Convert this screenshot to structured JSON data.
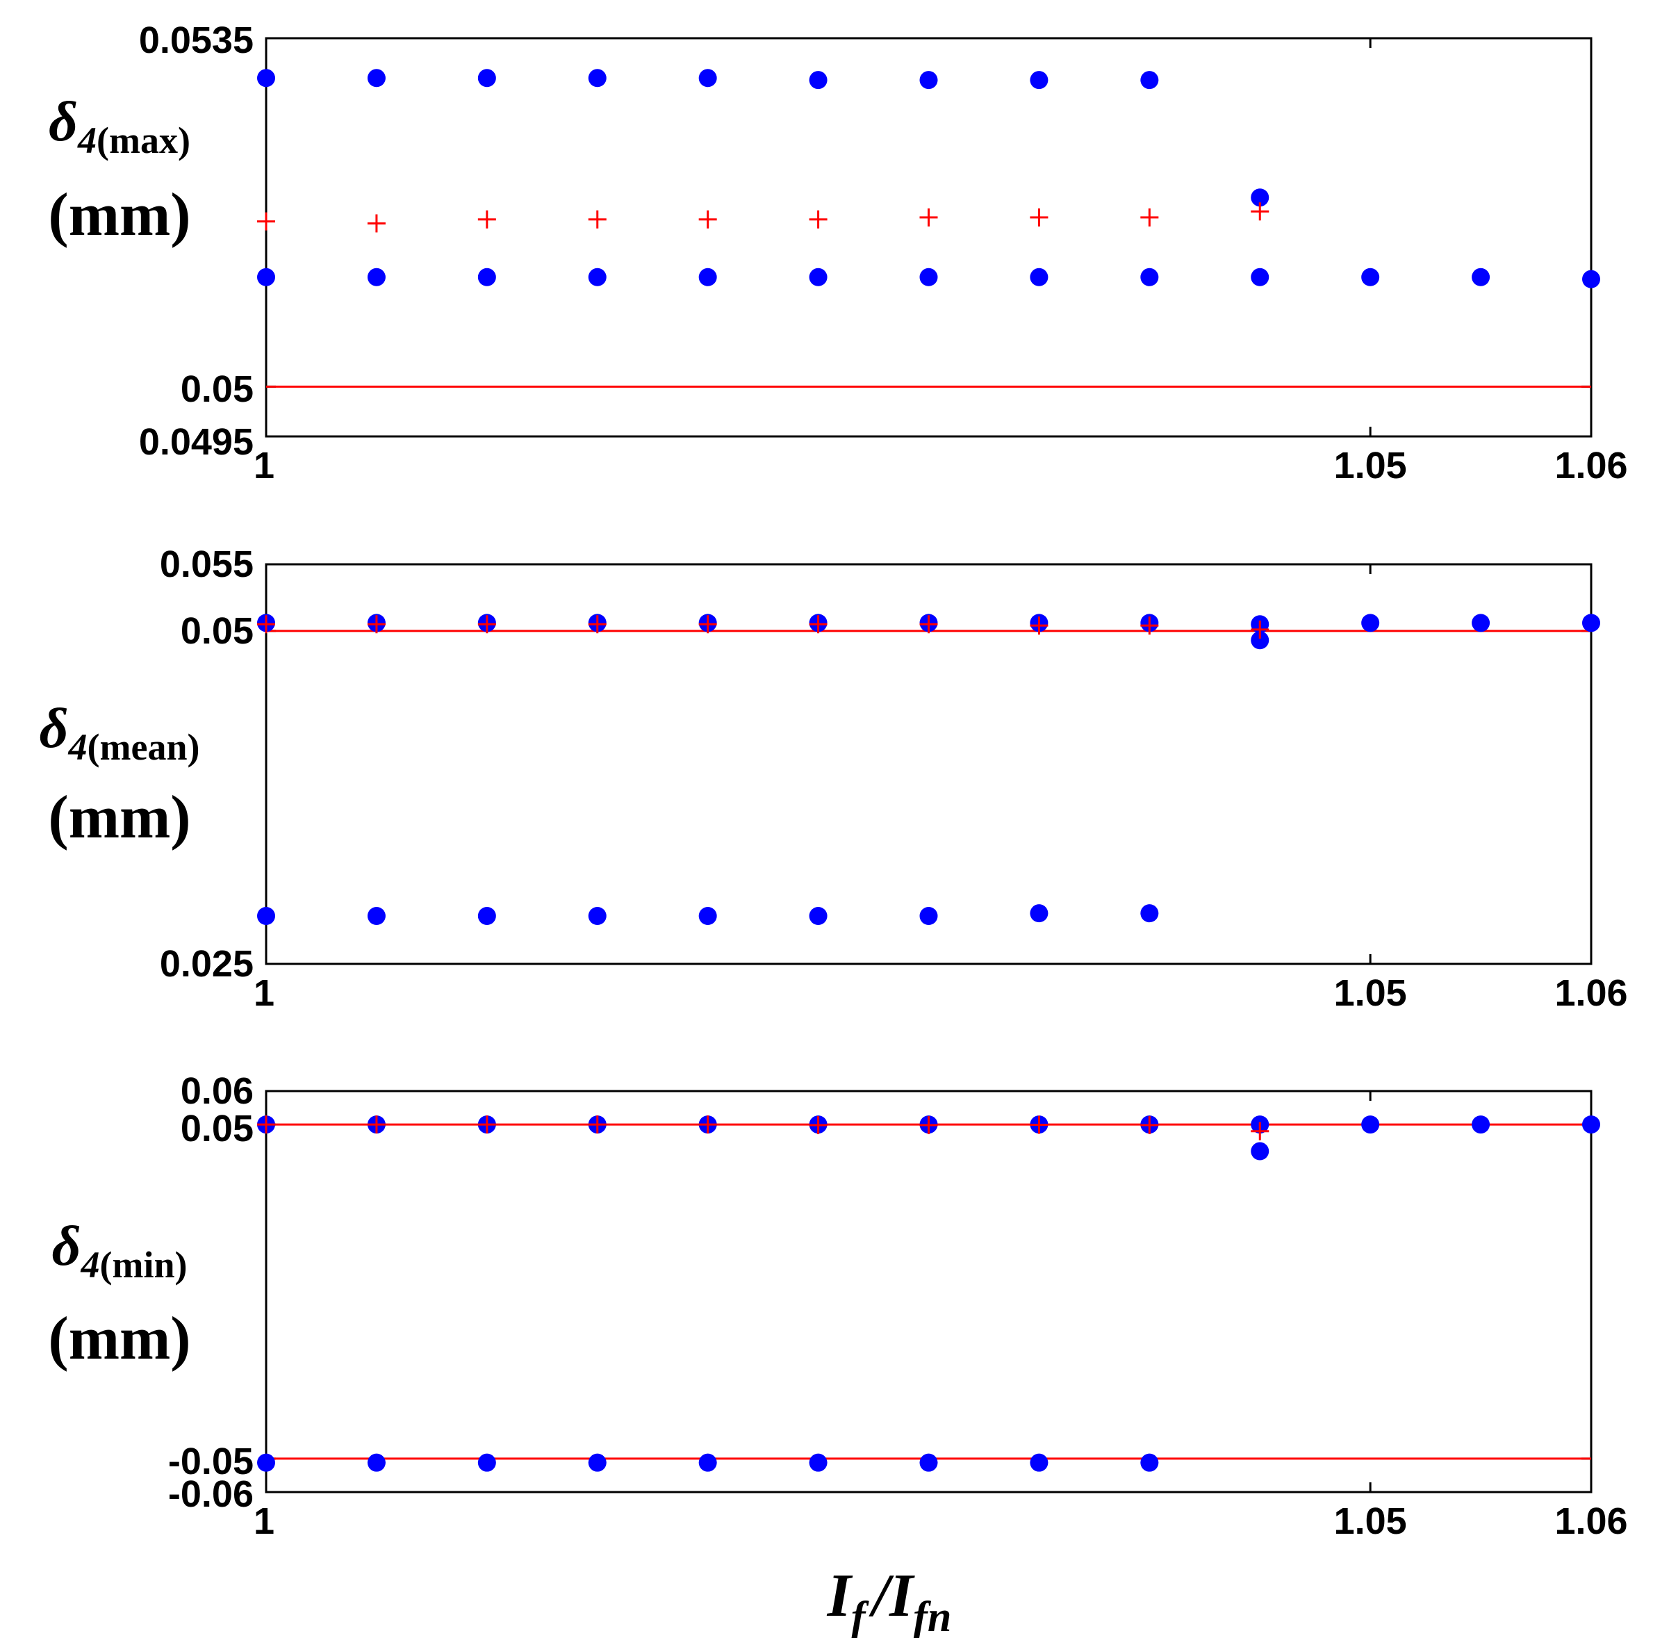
{
  "chart_data": [
    {
      "type": "scatter",
      "ylabel": {
        "symbol": "δ",
        "subscript_index": "4",
        "subscript_text": "(max)",
        "unit": "(mm)"
      },
      "ylim": [
        0.0495,
        0.0535
      ],
      "xlim": [
        1,
        1.06
      ],
      "yticks": [
        0.0495,
        0.05,
        0.0535
      ],
      "ytick_labels": [
        "0.0495",
        "0.05",
        "0.0535"
      ],
      "xticks": [
        1,
        1.05,
        1.06
      ],
      "xtick_labels": [
        "1",
        "1.05",
        "1.06"
      ],
      "reference_lines": [
        0.05
      ],
      "series": [
        {
          "marker": "circle",
          "color": "#0000ff",
          "x": [
            1,
            1.005,
            1.01,
            1.015,
            1.02,
            1.025,
            1.03,
            1.035,
            1.04
          ],
          "y": [
            0.0531,
            0.0531,
            0.0531,
            0.0531,
            0.0531,
            0.05308,
            0.05308,
            0.05308,
            0.05308
          ]
        },
        {
          "marker": "circle",
          "color": "#0000ff",
          "x": [
            1,
            1.005,
            1.01,
            1.015,
            1.02,
            1.025,
            1.03,
            1.035,
            1.04,
            1.045,
            1.05,
            1.055,
            1.06
          ],
          "y": [
            0.0511,
            0.0511,
            0.0511,
            0.0511,
            0.0511,
            0.0511,
            0.0511,
            0.0511,
            0.0511,
            0.0511,
            0.0511,
            0.0511,
            0.05108
          ]
        },
        {
          "marker": "circle",
          "color": "#0000ff",
          "x": [
            1.045
          ],
          "y": [
            0.0519
          ]
        },
        {
          "marker": "plus",
          "color": "#ff0000",
          "x": [
            1,
            1.005,
            1.01,
            1.015,
            1.02,
            1.025,
            1.03,
            1.035,
            1.04,
            1.045
          ],
          "y": [
            0.05166,
            0.05164,
            0.05168,
            0.05168,
            0.05168,
            0.05168,
            0.0517,
            0.0517,
            0.0517,
            0.05176
          ]
        }
      ]
    },
    {
      "type": "scatter",
      "ylabel": {
        "symbol": "δ",
        "subscript_index": "4",
        "subscript_text": "(mean)",
        "unit": "(mm)"
      },
      "ylim": [
        0.025,
        0.055
      ],
      "xlim": [
        1,
        1.06
      ],
      "yticks": [
        0.025,
        0.05,
        0.055
      ],
      "ytick_labels": [
        "0.025",
        "0.05",
        "0.055"
      ],
      "xticks": [
        1,
        1.05,
        1.06
      ],
      "xtick_labels": [
        "1",
        "1.05",
        "1.06"
      ],
      "reference_lines": [
        0.05
      ],
      "series": [
        {
          "marker": "circle",
          "color": "#0000ff",
          "x": [
            1,
            1.005,
            1.01,
            1.015,
            1.02,
            1.025,
            1.03,
            1.035,
            1.04,
            1.045,
            1.05,
            1.055,
            1.06
          ],
          "y": [
            0.0506,
            0.0506,
            0.0506,
            0.0506,
            0.0506,
            0.0506,
            0.0506,
            0.0506,
            0.0506,
            0.0505,
            0.0506,
            0.0506,
            0.0506
          ]
        },
        {
          "marker": "circle",
          "color": "#0000ff",
          "x": [
            1,
            1.005,
            1.01,
            1.015,
            1.02,
            1.025,
            1.03,
            1.035,
            1.04
          ],
          "y": [
            0.0286,
            0.0286,
            0.0286,
            0.0286,
            0.0286,
            0.0286,
            0.0286,
            0.0288,
            0.0288
          ]
        },
        {
          "marker": "circle",
          "color": "#0000ff",
          "x": [
            1.045
          ],
          "y": [
            0.0493
          ]
        },
        {
          "marker": "plus",
          "color": "#ff0000",
          "x": [
            1,
            1.005,
            1.01,
            1.015,
            1.02,
            1.025,
            1.03,
            1.035,
            1.04,
            1.045
          ],
          "y": [
            0.0505,
            0.0505,
            0.0505,
            0.0505,
            0.0505,
            0.0505,
            0.0505,
            0.0504,
            0.0504,
            0.0501
          ]
        }
      ]
    },
    {
      "type": "scatter",
      "ylabel": {
        "symbol": "δ",
        "subscript_index": "4",
        "subscript_text": "(min)",
        "unit": "(mm)"
      },
      "ylim": [
        -0.06,
        0.06
      ],
      "xlim": [
        1,
        1.06
      ],
      "yticks": [
        -0.06,
        -0.05,
        0.05,
        0.06
      ],
      "ytick_labels": [
        "-0.06",
        "-0.05",
        "0.05",
        "0.06"
      ],
      "xticks": [
        1,
        1.05,
        1.06
      ],
      "xtick_labels": [
        "1",
        "1.05",
        "1.06"
      ],
      "reference_lines": [
        0.05,
        -0.05
      ],
      "series": [
        {
          "marker": "circle",
          "color": "#0000ff",
          "x": [
            1,
            1.005,
            1.01,
            1.015,
            1.02,
            1.025,
            1.03,
            1.035,
            1.04,
            1.045,
            1.05,
            1.055,
            1.06
          ],
          "y": [
            0.05,
            0.05,
            0.05,
            0.05,
            0.05,
            0.05,
            0.05,
            0.05,
            0.05,
            0.05,
            0.05,
            0.05,
            0.05
          ]
        },
        {
          "marker": "circle",
          "color": "#0000ff",
          "x": [
            1,
            1.005,
            1.01,
            1.015,
            1.02,
            1.025,
            1.03,
            1.035,
            1.04
          ],
          "y": [
            -0.0512,
            -0.0512,
            -0.0512,
            -0.0512,
            -0.0512,
            -0.0512,
            -0.0512,
            -0.0512,
            -0.0512
          ]
        },
        {
          "marker": "circle",
          "color": "#0000ff",
          "x": [
            1.045
          ],
          "y": [
            0.042
          ]
        },
        {
          "marker": "plus",
          "color": "#ff0000",
          "x": [
            1,
            1.005,
            1.01,
            1.015,
            1.02,
            1.025,
            1.03,
            1.035,
            1.04,
            1.045
          ],
          "y": [
            0.05,
            0.05,
            0.05,
            0.05,
            0.05,
            0.0498,
            0.0498,
            0.0499,
            0.0498,
            0.048
          ]
        }
      ]
    }
  ],
  "xlabel": {
    "main": "I",
    "sub1": "f",
    "slash": "/",
    "sub2": "fn"
  },
  "colors": {
    "reference_line": "#ff0000",
    "circle": "#0000ff",
    "plus": "#ff0000",
    "axes": "#000000"
  }
}
